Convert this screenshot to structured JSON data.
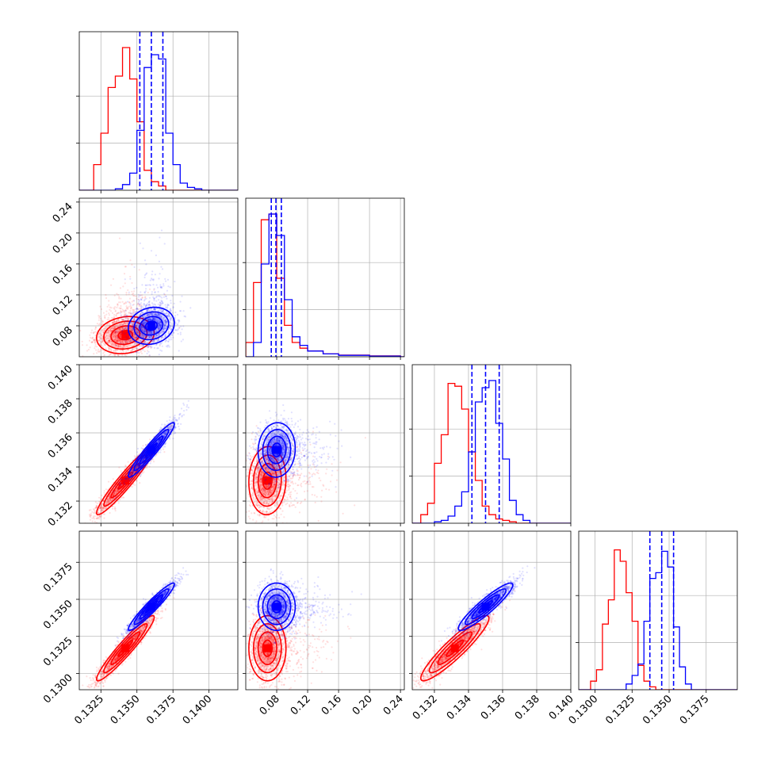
{
  "colors": {
    "series_a": "#ff0000",
    "series_b": "#0000ff"
  },
  "chart_data": {
    "type": "corner",
    "grid": true,
    "parameters": [
      {
        "ticks": [
          0.1325,
          0.135,
          0.1375,
          0.14
        ],
        "tick_labels": [
          "0.1325",
          "0.1350",
          "0.1375",
          "0.1400"
        ],
        "range": [
          0.131,
          0.142
        ]
      },
      {
        "ticks": [
          0.08,
          0.12,
          0.16,
          0.2,
          0.24
        ],
        "tick_labels": [
          "0.08",
          "0.12",
          "0.16",
          "0.20",
          "0.24"
        ],
        "range": [
          0.04,
          0.245
        ]
      },
      {
        "ticks": [
          0.132,
          0.134,
          0.136,
          0.138,
          0.14
        ],
        "tick_labels": [
          "0.132",
          "0.134",
          "0.136",
          "0.138",
          "0.140"
        ],
        "range": [
          0.1307,
          0.14
        ]
      },
      {
        "ticks": [
          0.13,
          0.1325,
          0.135,
          0.1375
        ],
        "tick_labels": [
          "0.1300",
          "0.1325",
          "0.1350",
          "0.1375"
        ],
        "range": [
          0.1289,
          0.1396
        ]
      }
    ],
    "series": [
      {
        "color": "#ff0000",
        "means": [
          0.1342,
          0.068,
          0.1332,
          0.1317
        ],
        "sds": [
          0.001,
          0.012,
          0.001,
          0.0011
        ],
        "marginals": [
          {
            "bins": [
              0.132,
              0.1325,
              0.133,
              0.1335,
              0.134,
              0.1345,
              0.135,
              0.1355,
              0.136,
              0.1365,
              0.137
            ],
            "counts": [
              0.18,
              0.4,
              0.72,
              0.8,
              1.0,
              0.78,
              0.48,
              0.14,
              0.06,
              0.03
            ]
          },
          {
            "bins": [
              0.04,
              0.05,
              0.06,
              0.07,
              0.08,
              0.09,
              0.1,
              0.11,
              0.12,
              0.14,
              0.16,
              0.2,
              0.24
            ],
            "counts": [
              0.1,
              0.52,
              0.96,
              1.0,
              0.55,
              0.22,
              0.1,
              0.06,
              0.04,
              0.02,
              0.012,
              0.006
            ]
          },
          {
            "bins": [
              0.1312,
              0.1316,
              0.132,
              0.1324,
              0.1328,
              0.1332,
              0.1336,
              0.134,
              0.1344,
              0.1348,
              0.1352,
              0.1356,
              0.136,
              0.1364,
              0.1368
            ],
            "counts": [
              0.06,
              0.14,
              0.42,
              0.62,
              0.98,
              0.96,
              0.8,
              0.5,
              0.3,
              0.12,
              0.06,
              0.03,
              0.02,
              0.01
            ]
          },
          {
            "bins": [
              0.1297,
              0.1301,
              0.1305,
              0.1309,
              0.1313,
              0.1317,
              0.1321,
              0.1325,
              0.1329,
              0.1333,
              0.1337,
              0.1341
            ],
            "counts": [
              0.06,
              0.14,
              0.46,
              0.63,
              0.98,
              0.9,
              0.68,
              0.48,
              0.17,
              0.06,
              0.02
            ]
          }
        ]
      },
      {
        "color": "#0000ff",
        "means": [
          0.136,
          0.08,
          0.135,
          0.1345
        ],
        "sds": [
          0.0008,
          0.012,
          0.0008,
          0.0008
        ],
        "quantiles": [
          [
            0.1352,
            0.136,
            0.1368
          ],
          [
            0.073,
            0.079,
            0.086
          ],
          [
            0.1342,
            0.135,
            0.1358
          ],
          [
            0.1337,
            0.1345,
            0.1353
          ]
        ],
        "marginals": [
          {
            "bins": [
              0.1335,
              0.134,
              0.1345,
              0.135,
              0.1355,
              0.136,
              0.1365,
              0.137,
              0.1375,
              0.138,
              0.1385,
              0.139,
              0.1395
            ],
            "counts": [
              0.01,
              0.04,
              0.12,
              0.42,
              0.86,
              0.95,
              0.92,
              0.4,
              0.18,
              0.05,
              0.02,
              0.01
            ]
          },
          {
            "bins": [
              0.05,
              0.06,
              0.07,
              0.08,
              0.09,
              0.1,
              0.11,
              0.12,
              0.14,
              0.16,
              0.2,
              0.24
            ],
            "counts": [
              0.1,
              0.65,
              1.0,
              0.85,
              0.4,
              0.14,
              0.08,
              0.04,
              0.02,
              0.01,
              0.005
            ]
          },
          {
            "bins": [
              0.132,
              0.1324,
              0.1328,
              0.1332,
              0.1336,
              0.134,
              0.1344,
              0.1348,
              0.1352,
              0.1356,
              0.136,
              0.1364,
              0.1368,
              0.1372,
              0.1376
            ],
            "counts": [
              0.01,
              0.02,
              0.05,
              0.12,
              0.22,
              0.5,
              0.85,
              0.95,
              1.0,
              0.7,
              0.45,
              0.16,
              0.06,
              0.02
            ]
          },
          {
            "bins": [
              0.1321,
              0.1325,
              0.1329,
              0.1333,
              0.1337,
              0.1341,
              0.1345,
              0.1349,
              0.1353,
              0.1357,
              0.1361,
              0.1365
            ],
            "counts": [
              0.04,
              0.1,
              0.18,
              0.48,
              0.78,
              0.82,
              0.97,
              0.86,
              0.44,
              0.16,
              0.04
            ]
          }
        ]
      }
    ],
    "correlations": {
      "1-0": 0.15,
      "2-0": 0.95,
      "2-1": 0.05,
      "3-0": 0.95,
      "3-1": 0.0,
      "3-2": 0.92
    },
    "scatter_points_per_panel": 1800
  }
}
